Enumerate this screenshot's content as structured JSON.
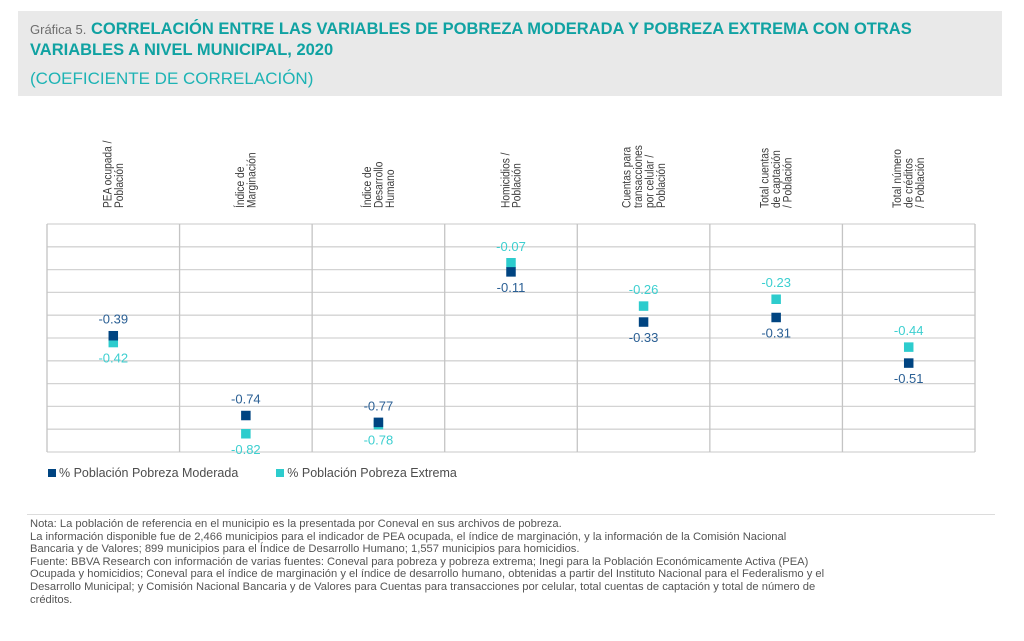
{
  "header": {
    "prefix": "Gráfica 5.",
    "title": "CORRELACIÓN ENTRE LAS VARIABLES DE POBREZA MODERADA Y POBREZA EXTREMA CON OTRAS VARIABLES A NIVEL MUNICIPAL, 2020",
    "subtitle": "(COEFICIENTE DE CORRELACIÓN)"
  },
  "colors": {
    "moderada": "#004481",
    "extrema": "#2dcccd",
    "moderada_label": "#2a5f94",
    "extrema_label": "#3ccfd0",
    "grid": "#d3d3d3",
    "axis_text": "#3c3c3c"
  },
  "chart_data": {
    "type": "scatter",
    "title": "CORRELACIÓN ENTRE LAS VARIABLES DE POBREZA MODERADA Y POBREZA EXTREMA CON OTRAS VARIABLES A NIVEL MUNICIPAL, 2020",
    "subtitle": "(COEFICIENTE DE CORRELACIÓN)",
    "categories": [
      [
        "PEA ocupada /",
        "Población"
      ],
      [
        "Índice de",
        "Marginación"
      ],
      [
        "Índice de",
        "Desarrollo",
        "Humano"
      ],
      [
        "Homicidios /",
        "Población"
      ],
      [
        "Cuentas para",
        "transacciones",
        "por celular /",
        "Población"
      ],
      [
        "Total cuentas",
        "de captación",
        "/ Población"
      ],
      [
        "Total número",
        "de créditos",
        "/ Población"
      ]
    ],
    "series": [
      {
        "name": "% Población Pobreza Moderada",
        "values": [
          -0.39,
          -0.74,
          -0.77,
          -0.11,
          -0.33,
          -0.31,
          -0.51
        ],
        "labels": [
          "-0.39",
          "-0.74",
          "-0.77",
          "-0.11",
          "-0.33",
          "-0.31",
          "-0.51"
        ]
      },
      {
        "name": "% Población Pobreza Extrema",
        "values": [
          -0.42,
          -0.82,
          -0.78,
          -0.07,
          -0.26,
          -0.23,
          -0.44
        ],
        "labels": [
          "-0.42",
          "-0.82",
          "-0.78",
          "-0.07",
          "-0.26",
          "-0.23",
          "-0.44"
        ]
      }
    ],
    "xlabel": "",
    "ylabel": "",
    "ylim": [
      -0.9,
      0.1
    ],
    "ytick_step": 0.1,
    "y_tick_labels_shown": false,
    "grid": true,
    "legend": "bottom-left"
  },
  "notes": {
    "lines": [
      "Nota: La población de referencia en el municipio es la presentada por Coneval en sus archivos de pobreza.",
      "La información disponible fue de 2,466 municipios para el indicador de PEA ocupada, el índice de marginación, y la información de la Comisión Nacional",
      "Bancaria y de Valores; 899 municipios para el Índice de Desarrollo Humano; 1,557 municipios para homicidios.",
      "Fuente: BBVA Research con información de varias fuentes: Coneval para pobreza y pobreza extrema; Inegi para la Población Económicamente Activa (PEA)",
      "Ocupada y homicidios; Coneval para el índice de marginación y el índice de desarrollo humano, obtenidas a partir del Instituto Nacional para el Federalismo y el",
      "Desarrollo Municipal; y Comisión Nacional Bancaria y de Valores para Cuentas para transacciones por celular, total cuentas de captación y total de número de",
      "créditos."
    ]
  }
}
